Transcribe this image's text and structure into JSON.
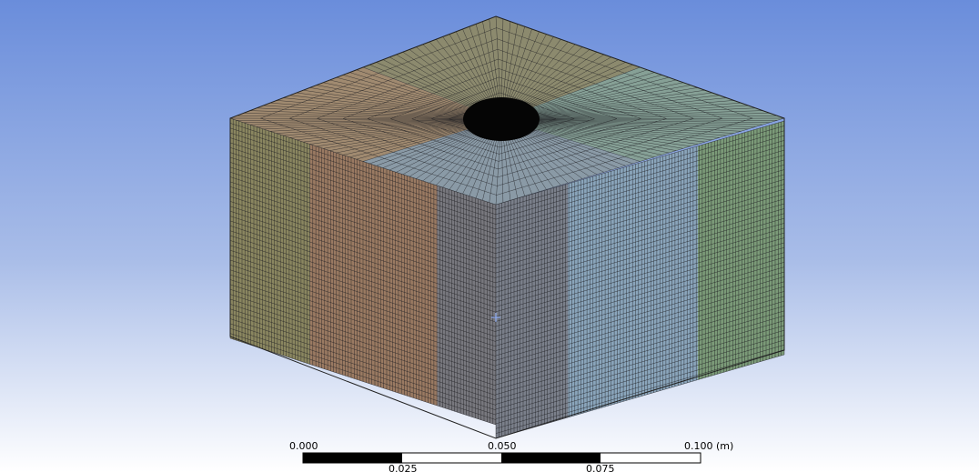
{
  "scale_bar": {
    "labels_top": [
      "0.000",
      "0.050",
      "0.100 (m)"
    ],
    "labels_bottom": [
      "0.025",
      "0.075"
    ]
  }
}
